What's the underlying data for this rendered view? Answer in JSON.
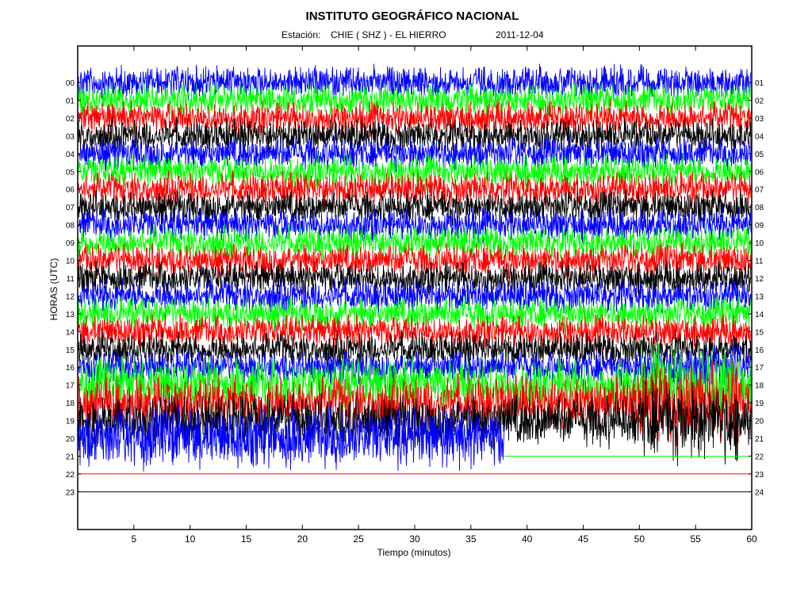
{
  "chart_data": {
    "type": "line",
    "title": "INSTITUTO GEOGRÁFICO NACIONAL",
    "station_label": "Estación:",
    "station": "CHIE ( SHZ ) - EL HIERRO",
    "date": "2011-12-04",
    "xlabel": "Tiempo (minutos)",
    "ylabel": "HORAS (UTC)",
    "xlim": [
      0,
      60
    ],
    "x_ticks": [
      5,
      10,
      15,
      20,
      25,
      30,
      35,
      40,
      45,
      50,
      55,
      60
    ],
    "left_hour_labels": [
      "00",
      "01",
      "02",
      "03",
      "04",
      "05",
      "06",
      "07",
      "08",
      "09",
      "10",
      "11",
      "12",
      "13",
      "14",
      "15",
      "16",
      "17",
      "18",
      "19",
      "20",
      "21",
      "22",
      "23"
    ],
    "right_hour_labels": [
      "01",
      "02",
      "03",
      "04",
      "05",
      "06",
      "07",
      "08",
      "09",
      "10",
      "11",
      "12",
      "13",
      "14",
      "15",
      "16",
      "17",
      "18",
      "19",
      "20",
      "21",
      "22",
      "23",
      "24"
    ],
    "trace_colors": [
      "#0000ff",
      "#00ff00",
      "#ff0000",
      "#000000"
    ],
    "grid": false,
    "recording_end_minute": 38
  }
}
